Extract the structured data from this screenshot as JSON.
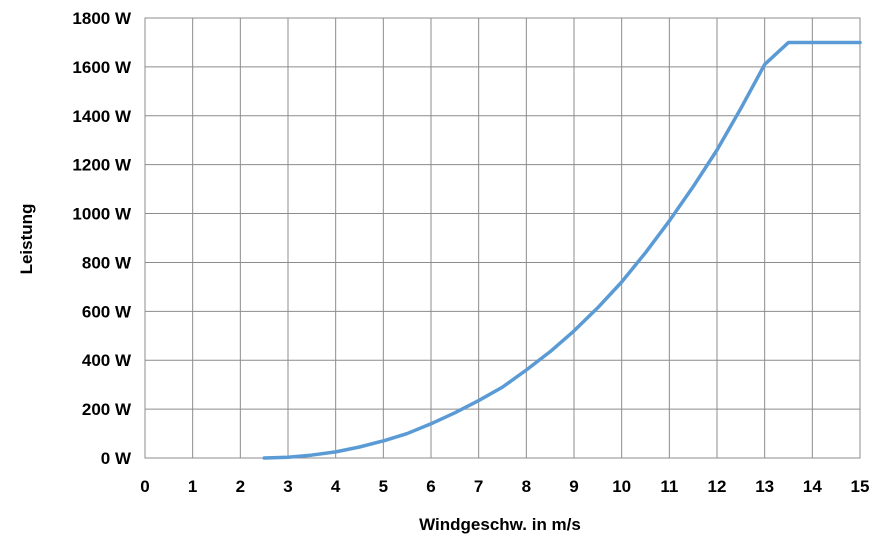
{
  "chart_data": {
    "type": "line",
    "title": "",
    "xlabel": "Windgeschw. in m/s",
    "ylabel": "Leistung",
    "xlim": [
      0,
      15
    ],
    "ylim": [
      0,
      1800
    ],
    "x_ticks": [
      0,
      1,
      2,
      3,
      4,
      5,
      6,
      7,
      8,
      9,
      10,
      11,
      12,
      13,
      14,
      15
    ],
    "y_ticks": [
      0,
      200,
      400,
      600,
      800,
      1000,
      1200,
      1400,
      1600,
      1800
    ],
    "y_tick_labels": [
      "0 W",
      "200 W",
      "400 W",
      "600 W",
      "800 W",
      "1000 W",
      "1200 W",
      "1400 W",
      "1600 W",
      "1800 W"
    ],
    "grid": true,
    "legend": "none",
    "series": [
      {
        "color": "#5b9bd5",
        "x": [
          2.5,
          3,
          3.5,
          4,
          4.5,
          5,
          5.5,
          6,
          6.5,
          7,
          7.5,
          8,
          8.5,
          9,
          9.5,
          10,
          10.5,
          11,
          11.5,
          12,
          12.5,
          13,
          13.5,
          14,
          14.5,
          15
        ],
        "y": [
          0,
          3,
          12,
          25,
          45,
          70,
          100,
          140,
          185,
          235,
          290,
          360,
          435,
          520,
          615,
          720,
          840,
          970,
          1110,
          1260,
          1430,
          1610,
          1700,
          1700,
          1700,
          1700
        ]
      }
    ]
  }
}
